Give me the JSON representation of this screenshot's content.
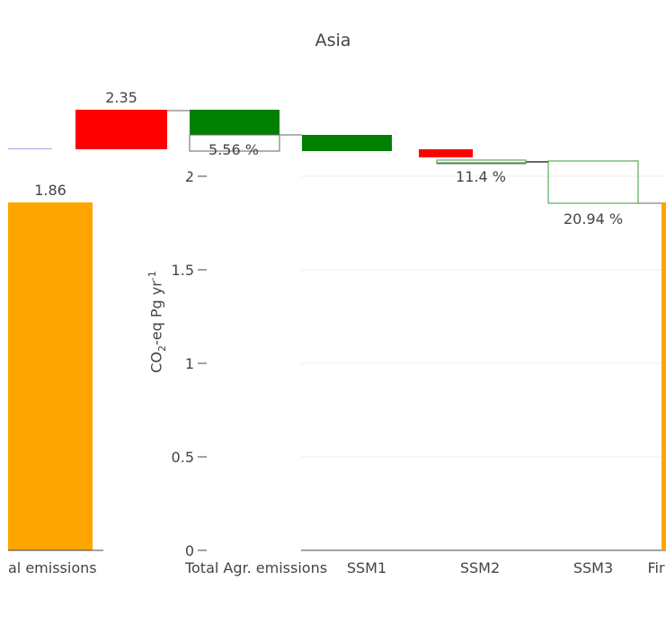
{
  "chart_data": [
    {
      "type": "bar",
      "title": "",
      "categories": [
        "Final emissions"
      ],
      "x_tick_labels": [
        "al emissions"
      ],
      "values": [
        1.86
      ],
      "data_labels": [
        "1.86"
      ],
      "ylim": [
        0,
        2.1
      ],
      "colors": {
        "bar": "#FFA500"
      }
    },
    {
      "type": "bar",
      "title": "Asia",
      "ylabel": {
        "main": "CO",
        "sub": "2",
        "mid": "-eq Pg yr",
        "sup": "-1"
      },
      "yticks": [
        "0",
        "0.5",
        "1",
        "1.5",
        "2"
      ],
      "ylim": [
        0,
        2.1
      ],
      "categories": [
        "Total Agr. emissions",
        "SSM1",
        "SSM2",
        "SSM3",
        "Final emissions"
      ],
      "x_tick_labels": [
        "Total Agr. emissions",
        "SSM1",
        "SSM2",
        "SSM3",
        "Fir"
      ],
      "bars": [
        {
          "category": "SSM2",
          "base": 1.86,
          "top": 2.06,
          "label": "11.4 %"
        },
        {
          "category": "SSM3",
          "base": 1.86,
          "top": 2.06,
          "label": "20.94 %"
        },
        {
          "category": "Final emissions",
          "base": 0,
          "top": 1.86,
          "label": ""
        }
      ],
      "grid": true,
      "colors": {
        "outline": "#3a9a3a",
        "grid": "#eeeeee",
        "final": "#FFA500"
      }
    },
    {
      "type": "bar",
      "title": "",
      "bars": [
        {
          "label": "2.35",
          "color": "#FF0000"
        },
        {
          "label": "",
          "color": "#008000"
        },
        {
          "label": "5.56 %",
          "color": "#ffffff"
        },
        {
          "label": "",
          "color": "#008000"
        },
        {
          "label": "",
          "color": "#FF0000"
        }
      ],
      "colors": {
        "up": "#FF0000",
        "down": "#008000"
      }
    }
  ]
}
